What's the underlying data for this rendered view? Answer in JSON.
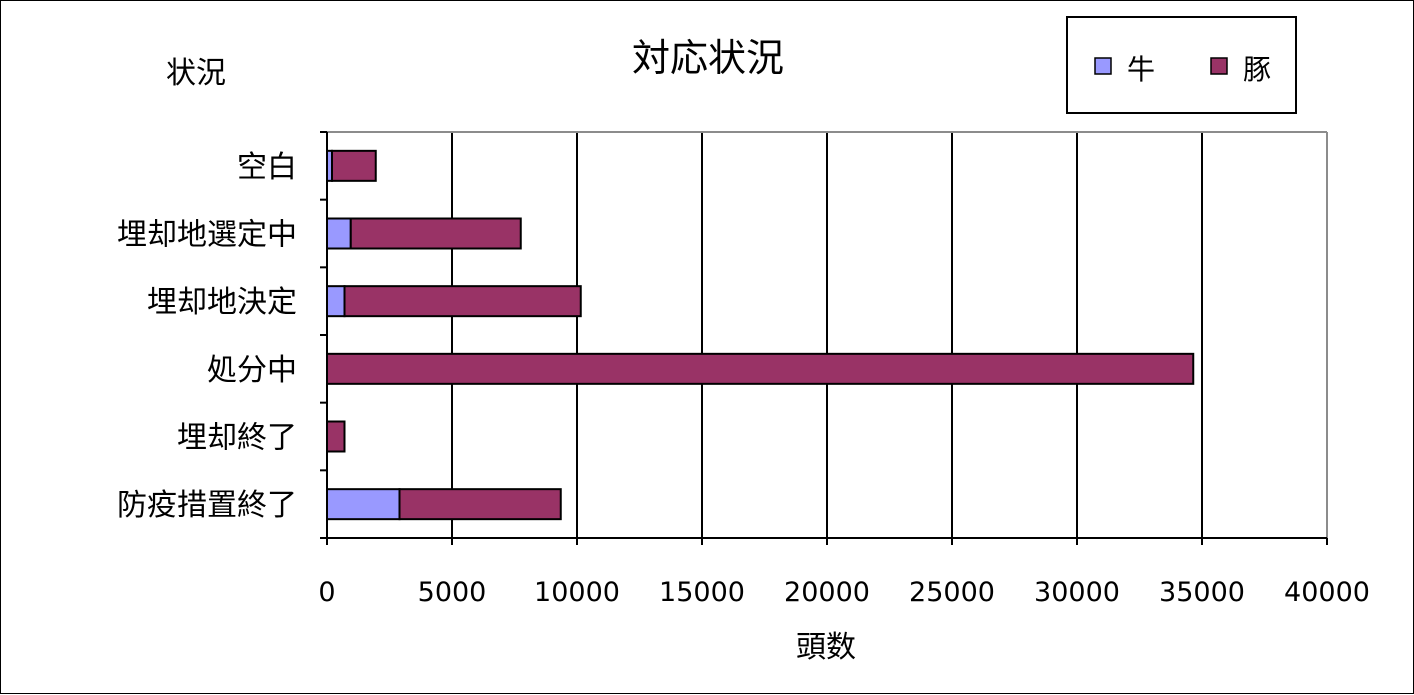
{
  "chart_data": {
    "type": "bar",
    "orientation": "horizontal",
    "stacked": true,
    "title": "対応状況",
    "xlabel": "頭数",
    "ylabel": "状況",
    "categories": [
      "空白",
      "埋却地選定中",
      "埋却地決定",
      "処分中",
      "埋却終了",
      "防疫措置終了"
    ],
    "series": [
      {
        "name": "牛",
        "color": "#9999ff",
        "values": [
          200,
          950,
          700,
          0,
          0,
          2900
        ]
      },
      {
        "name": "豚",
        "color": "#993366",
        "values": [
          1750,
          6800,
          9450,
          34650,
          700,
          6450
        ]
      }
    ],
    "xlim": [
      0,
      40000
    ],
    "xticks": [
      "0",
      "5000",
      "10000",
      "15000",
      "20000",
      "25000",
      "30000",
      "35000",
      "40000"
    ],
    "grid": "vertical",
    "legend": {
      "position": "top-right",
      "items": [
        "牛",
        "豚"
      ]
    }
  }
}
